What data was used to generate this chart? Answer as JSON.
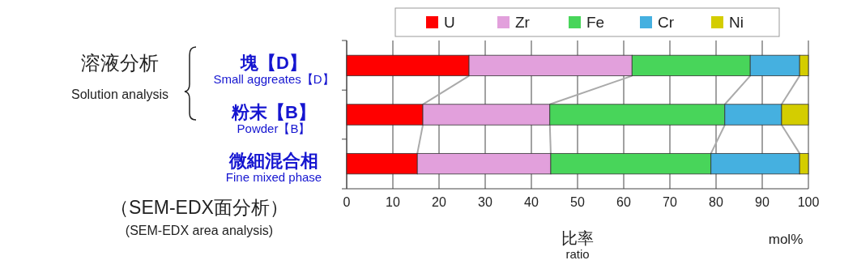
{
  "chart_data": {
    "type": "bar",
    "orientation": "horizontal",
    "stacked": true,
    "categories": [
      "塊【D】\nSmall aggreates【D】",
      "粉末【B】\nPowder【B】",
      "微細混合相\nFine mixed phase"
    ],
    "series": [
      {
        "name": "U",
        "color": "#ff0000",
        "values": [
          26.5,
          16.5,
          15.3
        ]
      },
      {
        "name": "Zr",
        "color": "#e2a0dc",
        "values": [
          35.3,
          27.5,
          28.9
        ]
      },
      {
        "name": "Fe",
        "color": "#48d55a",
        "values": [
          25.6,
          37.9,
          34.7
        ]
      },
      {
        "name": "Cr",
        "color": "#45b0e0",
        "values": [
          10.7,
          12.3,
          19.2
        ]
      },
      {
        "name": "Ni",
        "color": "#d4cd00",
        "values": [
          1.9,
          5.8,
          1.9
        ]
      }
    ],
    "xlim": [
      0,
      100
    ],
    "xticks": [
      0,
      10,
      20,
      30,
      40,
      50,
      60,
      70,
      80,
      90,
      100
    ],
    "xlabel": "比率\nratio",
    "grid": "x",
    "legend": "top",
    "annotations": [
      "溶液分析\nSolution analysis",
      "（SEM-EDX面分析）\n(SEM-EDX area analysis)",
      "mol%"
    ]
  }
}
